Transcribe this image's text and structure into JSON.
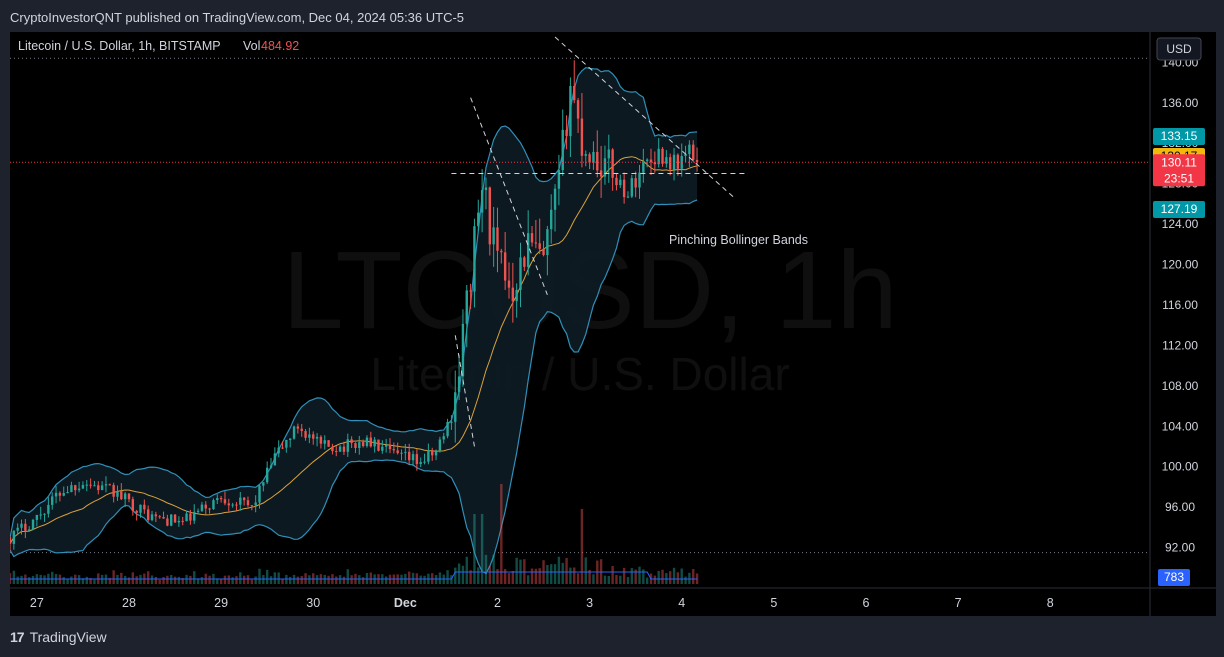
{
  "header": {
    "published": "CryptoInvestorQNT published on TradingView.com, Dec 04, 2024 05:36 UTC-5"
  },
  "legend": {
    "symbol": "Litecoin / U.S. Dollar, 1h, BITSTAMP",
    "vol_label": "Vol",
    "vol_value": "484.92"
  },
  "watermark": {
    "ticker": "LTCUSD, 1h",
    "name": "Litecoin / U.S. Dollar"
  },
  "currency_button": "USD",
  "annotation": "Pinching Bollinger Bands",
  "price_tags": {
    "upper_band": "133.15",
    "middle_band": "130.17",
    "last_price": "130.11",
    "countdown": "23:51",
    "lower_band": "127.19",
    "volume": "783"
  },
  "footer": {
    "brand": "TradingView"
  },
  "colors": {
    "up": "#26a69a",
    "down": "#ef5350",
    "band": "#2f8fb8",
    "basis": "#d9a23a",
    "band_fill": "#0e1c25",
    "upper_tag": "#0097a7",
    "middle_tag": "#f0b90b",
    "price_tag": "#f23645",
    "lower_tag": "#0097a7",
    "volume_tag": "#2962ff"
  },
  "chart_data": {
    "type": "candlestick",
    "ylim": [
      88,
      143
    ],
    "y_ticks": [
      92,
      96,
      100,
      104,
      108,
      112,
      116,
      120,
      124,
      128,
      132,
      136,
      140
    ],
    "x_ticks": [
      {
        "label": "27",
        "hour": 0
      },
      {
        "label": "28",
        "hour": 24
      },
      {
        "label": "29",
        "hour": 48
      },
      {
        "label": "30",
        "hour": 72
      },
      {
        "label": "Dec",
        "hour": 96
      },
      {
        "label": "2",
        "hour": 120
      },
      {
        "label": "3",
        "hour": 144
      },
      {
        "label": "4",
        "hour": 168
      },
      {
        "label": "5",
        "hour": 192
      },
      {
        "label": "6",
        "hour": 216
      },
      {
        "label": "7",
        "hour": 240
      },
      {
        "label": "8",
        "hour": 264
      }
    ],
    "x_range": [
      -7,
      290
    ],
    "anchors": [
      [
        -7,
        93
      ],
      [
        0,
        95
      ],
      [
        6,
        97.5
      ],
      [
        12,
        98.5
      ],
      [
        20,
        97.5
      ],
      [
        30,
        95
      ],
      [
        38,
        94.5
      ],
      [
        48,
        97
      ],
      [
        56,
        96
      ],
      [
        62,
        101
      ],
      [
        68,
        104
      ],
      [
        74,
        102
      ],
      [
        80,
        102
      ],
      [
        86,
        102.5
      ],
      [
        94,
        101
      ],
      [
        100,
        100.5
      ],
      [
        104,
        101.5
      ],
      [
        108,
        105
      ],
      [
        110,
        110
      ],
      [
        114,
        122
      ],
      [
        116,
        128
      ],
      [
        120,
        120
      ],
      [
        124,
        118
      ],
      [
        128,
        122
      ],
      [
        132,
        120
      ],
      [
        136,
        128
      ],
      [
        139,
        138
      ],
      [
        142,
        132
      ],
      [
        146,
        130.5
      ],
      [
        150,
        129
      ],
      [
        154,
        127
      ],
      [
        158,
        130
      ],
      [
        162,
        131
      ],
      [
        166,
        130
      ],
      [
        170,
        131
      ],
      [
        172,
        130.1
      ]
    ],
    "notable_high": 140.2,
    "last_close": 130.11,
    "bands_last": {
      "upper": 133.15,
      "basis": 130.17,
      "lower": 127.19
    },
    "volume_last": 783
  }
}
